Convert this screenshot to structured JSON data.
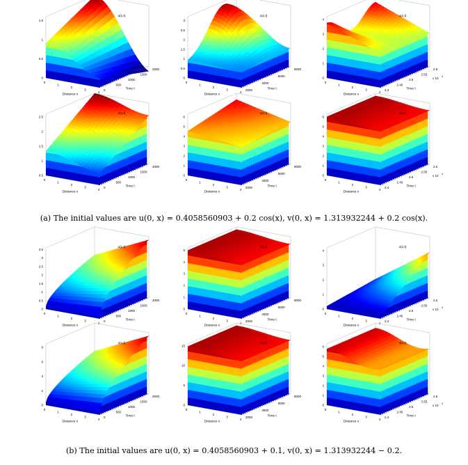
{
  "figure": {
    "captions": [
      "(a)  The initial values are u(0, x) = 0.4058560903 + 0.2 cos(x), v(0, x) = 1.313932244 + 0.2 cos(x).",
      "(b)  The initial values are u(0, x) = 0.4058560903 + 0.1, v(0, x) = 1.313932244 − 0.2."
    ],
    "xlabel": "Distance x",
    "ylabel": "Time t",
    "x_ticks": [
      "0",
      "1",
      "2",
      "3",
      "4"
    ],
    "exponent_label": "x 10",
    "exponent_power": "4",
    "colormap": [
      "#00008f",
      "#0000ff",
      "#0080ff",
      "#00ffff",
      "#80ff80",
      "#ffff00",
      "#ff8000",
      "#ff0000",
      "#800000"
    ]
  },
  "chart_data": [
    {
      "type": "surface",
      "title": "u(x,t)",
      "series": "u",
      "t_ticks": [
        "0",
        "500",
        "1000",
        "1500",
        "2000"
      ],
      "z_ticks": [
        "0",
        "0.5",
        "1",
        "1.5"
      ],
      "zmax": 1.6,
      "shape": "wave_a_u1"
    },
    {
      "type": "surface",
      "title": "u(x,t)",
      "series": "u",
      "t_ticks": [
        "2000",
        "4000",
        "6000",
        "8000"
      ],
      "z_ticks": [
        "0",
        "0.5",
        "1",
        "1.5",
        "2",
        "2.5",
        "3"
      ],
      "zmax": 3.2,
      "shape": "peak"
    },
    {
      "type": "surface",
      "title": "u(x,t)",
      "series": "u",
      "t_ticks": [
        "2.4",
        "2.45",
        "2.5",
        "2.55",
        "2.6"
      ],
      "z_ticks": [
        "0",
        "1",
        "2",
        "3",
        "4"
      ],
      "zmax": 4.2,
      "exp": true,
      "shape": "ridge_high"
    },
    {
      "type": "surface",
      "title": "v(x,t)",
      "series": "v",
      "t_ticks": [
        "0",
        "500",
        "1000",
        "1500",
        "2000"
      ],
      "z_ticks": [
        "0.5",
        "1",
        "1.5",
        "2",
        "2.5"
      ],
      "zmax": 2.6,
      "zmin": 0.5,
      "shape": "slope"
    },
    {
      "type": "surface",
      "title": "v(x,t)",
      "series": "v",
      "t_ticks": [
        "2000",
        "4000",
        "6000",
        "8000"
      ],
      "z_ticks": [
        "0",
        "1",
        "2",
        "3",
        "4",
        "5",
        "6"
      ],
      "zmax": 6.3,
      "shape": "plateau"
    },
    {
      "type": "surface",
      "title": "v(x,t)",
      "series": "v",
      "t_ticks": [
        "2.4",
        "2.45",
        "2.5",
        "2.55",
        "2.6"
      ],
      "z_ticks": [
        "0",
        "1",
        "2",
        "3",
        "4",
        "5",
        "6"
      ],
      "zmax": 6.3,
      "exp": true,
      "shape": "box"
    },
    {
      "type": "surface",
      "title": "u(x,t)",
      "series": "u",
      "t_ticks": [
        "0",
        "500",
        "1000",
        "1500",
        "2000"
      ],
      "z_ticks": [
        "0",
        "0.5",
        "1",
        "1.5",
        "2",
        "2.5",
        "3",
        "3.5"
      ],
      "zmax": 3.6,
      "shape": "rising_b"
    },
    {
      "type": "surface",
      "title": "u(x,t)",
      "series": "u",
      "t_ticks": [
        "2000",
        "4000",
        "6000",
        "8000"
      ],
      "z_ticks": [
        "0",
        "1",
        "2",
        "3",
        "4",
        "5"
      ],
      "zmax": 5.2,
      "shape": "box"
    },
    {
      "type": "surface",
      "title": "u(x,t)",
      "series": "u",
      "t_ticks": [
        "2.4",
        "2.45",
        "2.5",
        "2.55",
        "2.6"
      ],
      "z_ticks": [
        "0",
        "1",
        "2",
        "3",
        "4"
      ],
      "zmax": 4.2,
      "exp": true,
      "shape": "wedge"
    },
    {
      "type": "surface",
      "title": "v(x,t)",
      "series": "v",
      "t_ticks": [
        "0",
        "500",
        "1000",
        "1500",
        "2000"
      ],
      "z_ticks": [
        "0",
        "2",
        "4",
        "6",
        "8"
      ],
      "zmax": 8.5,
      "shape": "rising_b"
    },
    {
      "type": "surface",
      "title": "v(x,t)",
      "series": "v",
      "t_ticks": [
        "2000",
        "4000",
        "6000",
        "8000"
      ],
      "z_ticks": [
        "0",
        "5",
        "10",
        "15"
      ],
      "zmax": 15.5,
      "shape": "box"
    },
    {
      "type": "surface",
      "title": "v(x,t)",
      "series": "v",
      "t_ticks": [
        "2.4",
        "2.45",
        "2.5",
        "2.55",
        "2.6"
      ],
      "z_ticks": [
        "0",
        "1",
        "2",
        "3",
        "4",
        "5",
        "6"
      ],
      "zmax": 6.3,
      "exp": true,
      "shape": "box_wave"
    }
  ]
}
